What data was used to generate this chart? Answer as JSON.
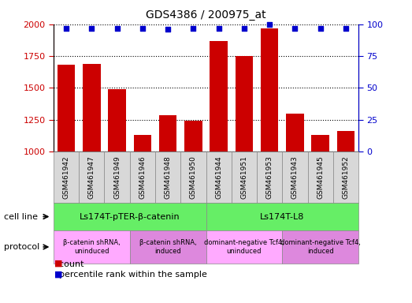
{
  "title": "GDS4386 / 200975_at",
  "samples": [
    "GSM461942",
    "GSM461947",
    "GSM461949",
    "GSM461946",
    "GSM461948",
    "GSM461950",
    "GSM461944",
    "GSM461951",
    "GSM461953",
    "GSM461943",
    "GSM461945",
    "GSM461952"
  ],
  "counts": [
    1685,
    1690,
    1490,
    1130,
    1285,
    1240,
    1865,
    1750,
    1970,
    1300,
    1130,
    1160
  ],
  "percentile_ranks": [
    97,
    97,
    97,
    97,
    96,
    97,
    97,
    97,
    100,
    97,
    97,
    97
  ],
  "ylim_left": [
    1000,
    2000
  ],
  "ylim_right": [
    0,
    100
  ],
  "yticks_left": [
    1000,
    1250,
    1500,
    1750,
    2000
  ],
  "yticks_right": [
    0,
    25,
    50,
    75,
    100
  ],
  "bar_color": "#cc0000",
  "scatter_color": "#0000cc",
  "cell_line_groups": [
    {
      "label": "Ls174T-pTER-β-catenin",
      "start": 0,
      "end": 6,
      "color": "#66ee66"
    },
    {
      "label": "Ls174T-L8",
      "start": 6,
      "end": 12,
      "color": "#66ee66"
    }
  ],
  "protocol_groups": [
    {
      "label": "β-catenin shRNA,\nuninduced",
      "start": 0,
      "end": 3,
      "color": "#ffaaff"
    },
    {
      "label": "β-catenin shRNA,\ninduced",
      "start": 3,
      "end": 6,
      "color": "#dd88dd"
    },
    {
      "label": "dominant-negative Tcf4,\nuninduced",
      "start": 6,
      "end": 9,
      "color": "#ffaaff"
    },
    {
      "label": "dominant-negative Tcf4,\ninduced",
      "start": 9,
      "end": 12,
      "color": "#dd88dd"
    }
  ],
  "sample_box_color": "#d8d8d8",
  "legend_count_color": "#cc0000",
  "legend_pct_color": "#0000cc",
  "tick_label_color_left": "#cc0000",
  "tick_label_color_right": "#0000cc",
  "bar_width": 0.7
}
